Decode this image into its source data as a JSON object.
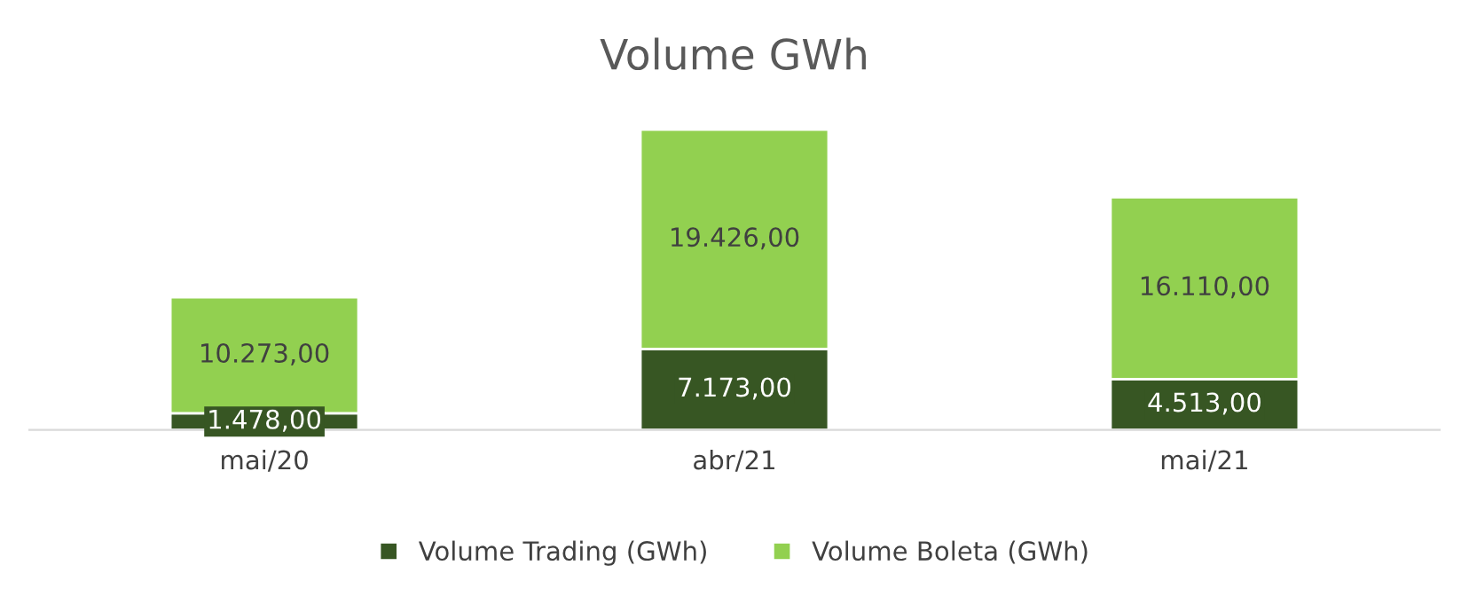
{
  "chart_data": {
    "type": "bar",
    "title": "Volume GWh",
    "stacked": true,
    "categories": [
      "mai/20",
      "abr/21",
      "mai/21"
    ],
    "series": [
      {
        "name": "Volume Trading (GWh)",
        "color": "#375623",
        "values": [
          1478,
          7173,
          4513
        ],
        "value_labels": [
          "1.478,00",
          "7.173,00",
          "4.513,00"
        ]
      },
      {
        "name": "Volume Boleta (GWh)",
        "color": "#92d050",
        "values": [
          10273,
          19426,
          16110
        ],
        "value_labels": [
          "10.273,00",
          "19.426,00",
          "16.110,00"
        ]
      }
    ],
    "tick_labels": "x",
    "legend": "bottom"
  }
}
